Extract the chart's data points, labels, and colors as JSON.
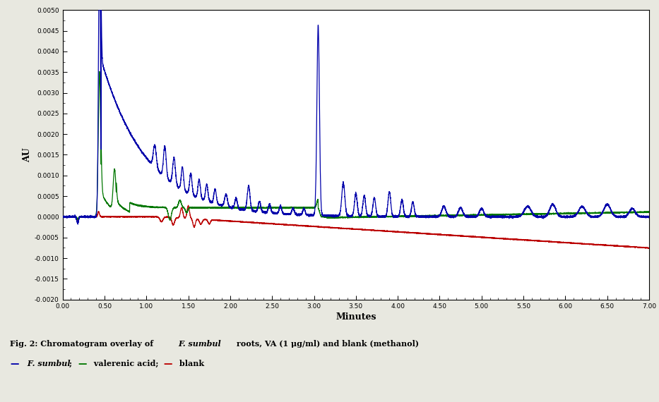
{
  "xlabel": "Minutes",
  "ylabel": "AU",
  "xlim": [
    0.0,
    7.0
  ],
  "ylim": [
    -0.002,
    0.005
  ],
  "xticks": [
    0.0,
    0.5,
    1.0,
    1.5,
    2.0,
    2.5,
    3.0,
    3.5,
    4.0,
    4.5,
    5.0,
    5.5,
    6.0,
    6.5,
    7.0
  ],
  "yticks": [
    -0.002,
    -0.0015,
    -0.001,
    -0.0005,
    0.0,
    0.0005,
    0.001,
    0.0015,
    0.002,
    0.0025,
    0.003,
    0.0035,
    0.004,
    0.0045,
    0.005
  ],
  "colors": {
    "blue": "#0000AA",
    "green": "#007700",
    "red": "#BB0000",
    "background": "#e8e8e0",
    "plot_bg": "#ffffff"
  }
}
